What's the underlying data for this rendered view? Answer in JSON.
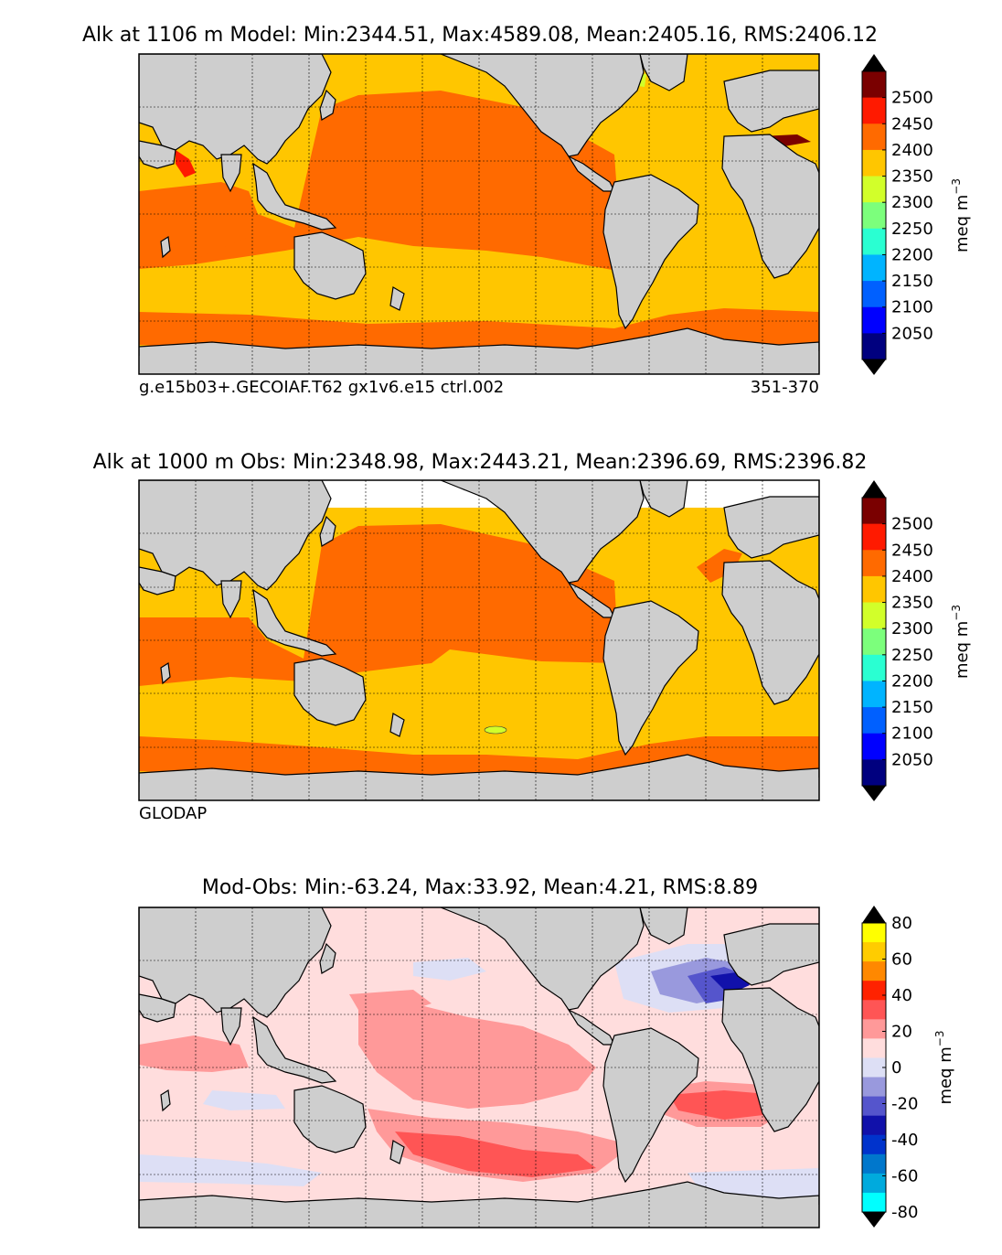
{
  "panels": [
    {
      "title": "Alk at 1106 m Model: Min:2344.51, Max:4589.08, Mean:2405.16, RMS:2406.12",
      "left_caption": "g.e15b03+.GECOIAF.T62 gx1v6.e15 ctrl.002",
      "right_caption": "351-370",
      "colorbar": {
        "unit": "meq m",
        "unit_exp": "−3",
        "ticks": [
          "2500",
          "2450",
          "2400",
          "2350",
          "2300",
          "2250",
          "2200",
          "2150",
          "2100",
          "2050"
        ],
        "colors": [
          "#7a0000",
          "#ff1a00",
          "#ff6a00",
          "#ffc600",
          "#d2ff2a",
          "#7cff7c",
          "#2affd2",
          "#00b4ff",
          "#0060ff",
          "#0000ff",
          "#00007f"
        ],
        "over_color": "#000000",
        "under_color": "#000000"
      }
    },
    {
      "title": "Alk at 1000 m Obs: Min:2348.98, Max:2443.21, Mean:2396.69, RMS:2396.82",
      "left_caption": "GLODAP",
      "right_caption": "",
      "colorbar": {
        "unit": "meq m",
        "unit_exp": "−3",
        "ticks": [
          "2500",
          "2450",
          "2400",
          "2350",
          "2300",
          "2250",
          "2200",
          "2150",
          "2100",
          "2050"
        ],
        "colors": [
          "#7a0000",
          "#ff1a00",
          "#ff6a00",
          "#ffc600",
          "#d2ff2a",
          "#7cff7c",
          "#2affd2",
          "#00b4ff",
          "#0060ff",
          "#0000ff",
          "#00007f"
        ],
        "over_color": "#000000",
        "under_color": "#000000"
      }
    },
    {
      "title": "Mod-Obs: Min:-63.24, Max:33.92, Mean:4.21, RMS:8.89",
      "left_caption": "",
      "right_caption": "",
      "colorbar": {
        "unit": "meq m",
        "unit_exp": "−3",
        "ticks": [
          "80",
          "60",
          "40",
          "20",
          "0",
          "-20",
          "-40",
          "-60",
          "-80"
        ],
        "colors": [
          "#ffff00",
          "#ffcc00",
          "#ff8800",
          "#ff2200",
          "#ff5555",
          "#ff9999",
          "#ffdddd",
          "#dddff5",
          "#9999dd",
          "#5555cc",
          "#1111aa",
          "#0033cc",
          "#0077cc",
          "#00aadd",
          "#00ffff"
        ],
        "over_color": "#000000",
        "under_color": "#000000"
      }
    }
  ],
  "map_colors": {
    "land": "#cecece",
    "missing": "#ffffff",
    "model_pacific": "#ff6a00",
    "model_atlantic": "#ffc600",
    "model_southern": "#ffc600",
    "model_acc": "#ff6a00",
    "model_arctic": "#ffc600",
    "diff_base": "#ffdddd",
    "diff_pos1": "#ff9999",
    "diff_pos2": "#ff5555",
    "diff_neg1": "#dddff5",
    "diff_neg2": "#9999dd",
    "diff_neg3": "#5555cc",
    "diff_neg4": "#1111aa"
  }
}
